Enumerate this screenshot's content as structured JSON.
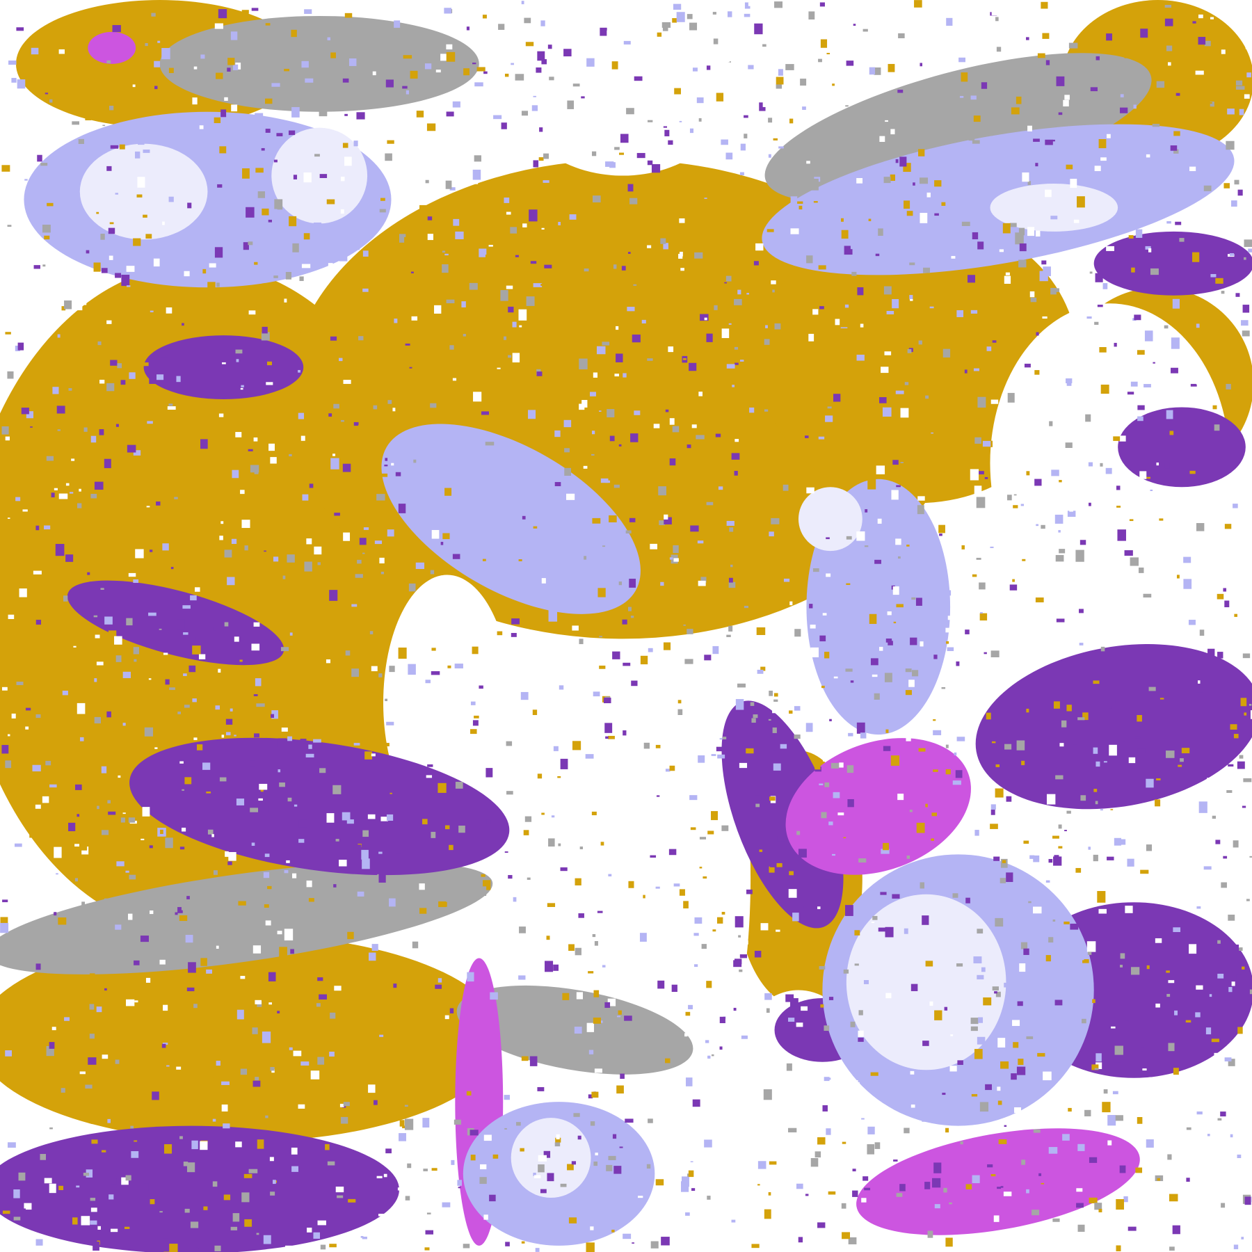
{
  "image": {
    "kind": "satellite cloud-classification composite",
    "palette": {
      "clear": "#ffffff",
      "low_cloud": "#d4a20a",
      "mid_cloud": "#a6a6a6",
      "high_thin": "#b4b4f4",
      "high_thick": "#ececfc",
      "deep_convective": "#cc55e0",
      "stratiform": "#7b38b4"
    }
  }
}
